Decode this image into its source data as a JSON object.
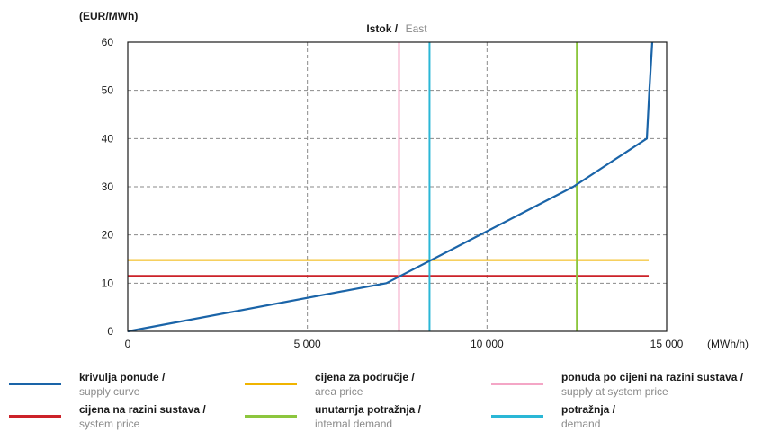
{
  "chart_data": {
    "type": "line",
    "title_hr": "Istok /",
    "title_en": "East",
    "ylabel": "(EUR/MWh)",
    "xlabel": "(MWh/h)",
    "xlim": [
      0,
      15000
    ],
    "ylim": [
      0,
      60
    ],
    "x_ticks": [
      0,
      5000,
      10000,
      15000
    ],
    "x_tick_labels": [
      "0",
      "5 000",
      "10 000",
      "15 000"
    ],
    "y_ticks": [
      0,
      10,
      20,
      30,
      40,
      50,
      60
    ],
    "y_tick_labels": [
      "0",
      "10",
      "20",
      "30",
      "40",
      "50",
      "60"
    ],
    "grid": true,
    "series": [
      {
        "key": "supply_curve",
        "color": "#1a64a8",
        "kind": "curve",
        "points": [
          [
            0,
            0
          ],
          [
            7200,
            10
          ],
          [
            12400,
            30
          ],
          [
            14450,
            40
          ],
          [
            14520,
            50
          ],
          [
            14600,
            60
          ]
        ]
      },
      {
        "key": "area_price",
        "color": "#f0b400",
        "kind": "hline",
        "y": 14.8,
        "x_range": [
          0,
          14500
        ]
      },
      {
        "key": "system_price",
        "color": "#cc2229",
        "kind": "hline",
        "y": 11.5,
        "x_range": [
          0,
          14500
        ]
      },
      {
        "key": "supply_at_system_price",
        "color": "#f4a6c6",
        "kind": "vline",
        "x": 7550
      },
      {
        "key": "internal_demand",
        "color": "#8cc63e",
        "kind": "vline",
        "x": 12500
      },
      {
        "key": "demand",
        "color": "#2ab7d6",
        "kind": "vline",
        "x": 8400
      }
    ]
  },
  "legend": [
    {
      "hr": "krivulja ponude /",
      "en": "supply curve",
      "color": "#1a64a8"
    },
    {
      "hr": "cijena za područje /",
      "en": "area price",
      "color": "#f0b400"
    },
    {
      "hr": "ponuda po cijeni na razini sustava /",
      "en": "supply at system price",
      "color": "#f4a6c6"
    },
    {
      "hr": "cijena na razini sustava /",
      "en": "system price",
      "color": "#cc2229"
    },
    {
      "hr": "unutarnja potražnja /",
      "en": "internal demand",
      "color": "#8cc63e"
    },
    {
      "hr": "potražnja /",
      "en": "demand",
      "color": "#2ab7d6"
    }
  ]
}
